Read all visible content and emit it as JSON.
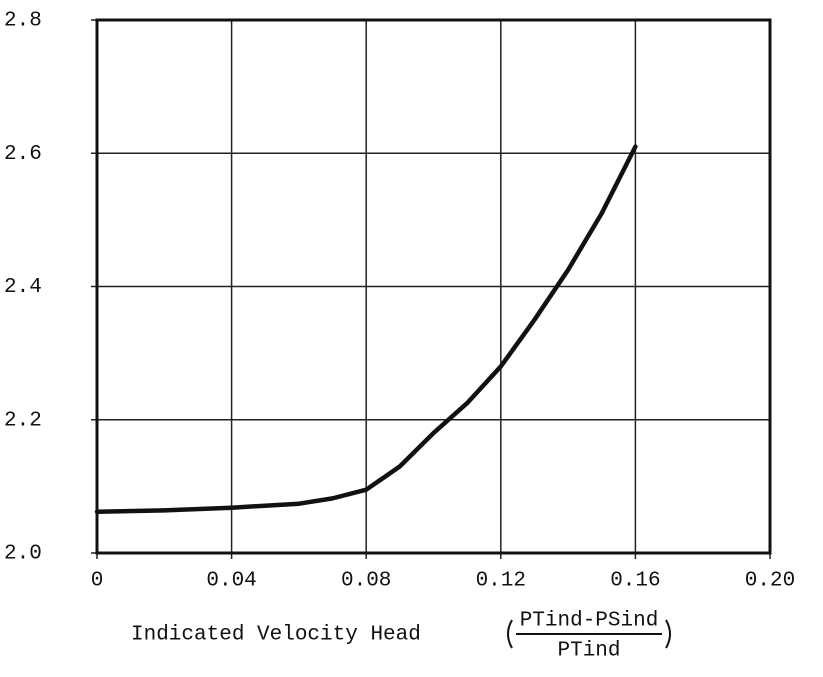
{
  "chart_data": {
    "type": "line",
    "xlabel": "Indicated Velocity Head",
    "xlabel_numerator": "PTind-PSind",
    "xlabel_denominator": "PTind",
    "x": [
      0.0,
      0.02,
      0.04,
      0.06,
      0.07,
      0.08,
      0.09,
      0.1,
      0.11,
      0.12,
      0.13,
      0.14,
      0.15,
      0.16
    ],
    "series": [
      {
        "name": null,
        "color": "#111111",
        "values": [
          2.062,
          2.064,
          2.068,
          2.074,
          2.082,
          2.095,
          2.13,
          2.18,
          2.225,
          2.28,
          2.35,
          2.425,
          2.51,
          2.61
        ]
      }
    ],
    "xlim": [
      0,
      0.2
    ],
    "ylim": [
      2.0,
      2.8
    ],
    "xticks": [
      0,
      0.04,
      0.08,
      0.12,
      0.16,
      {
        "value": 0.2,
        "label": "0.20"
      }
    ],
    "yticks": [
      {
        "value": 2.0,
        "label": "2.0"
      },
      2.2,
      2.4,
      2.6,
      2.8
    ],
    "grid": true
  }
}
